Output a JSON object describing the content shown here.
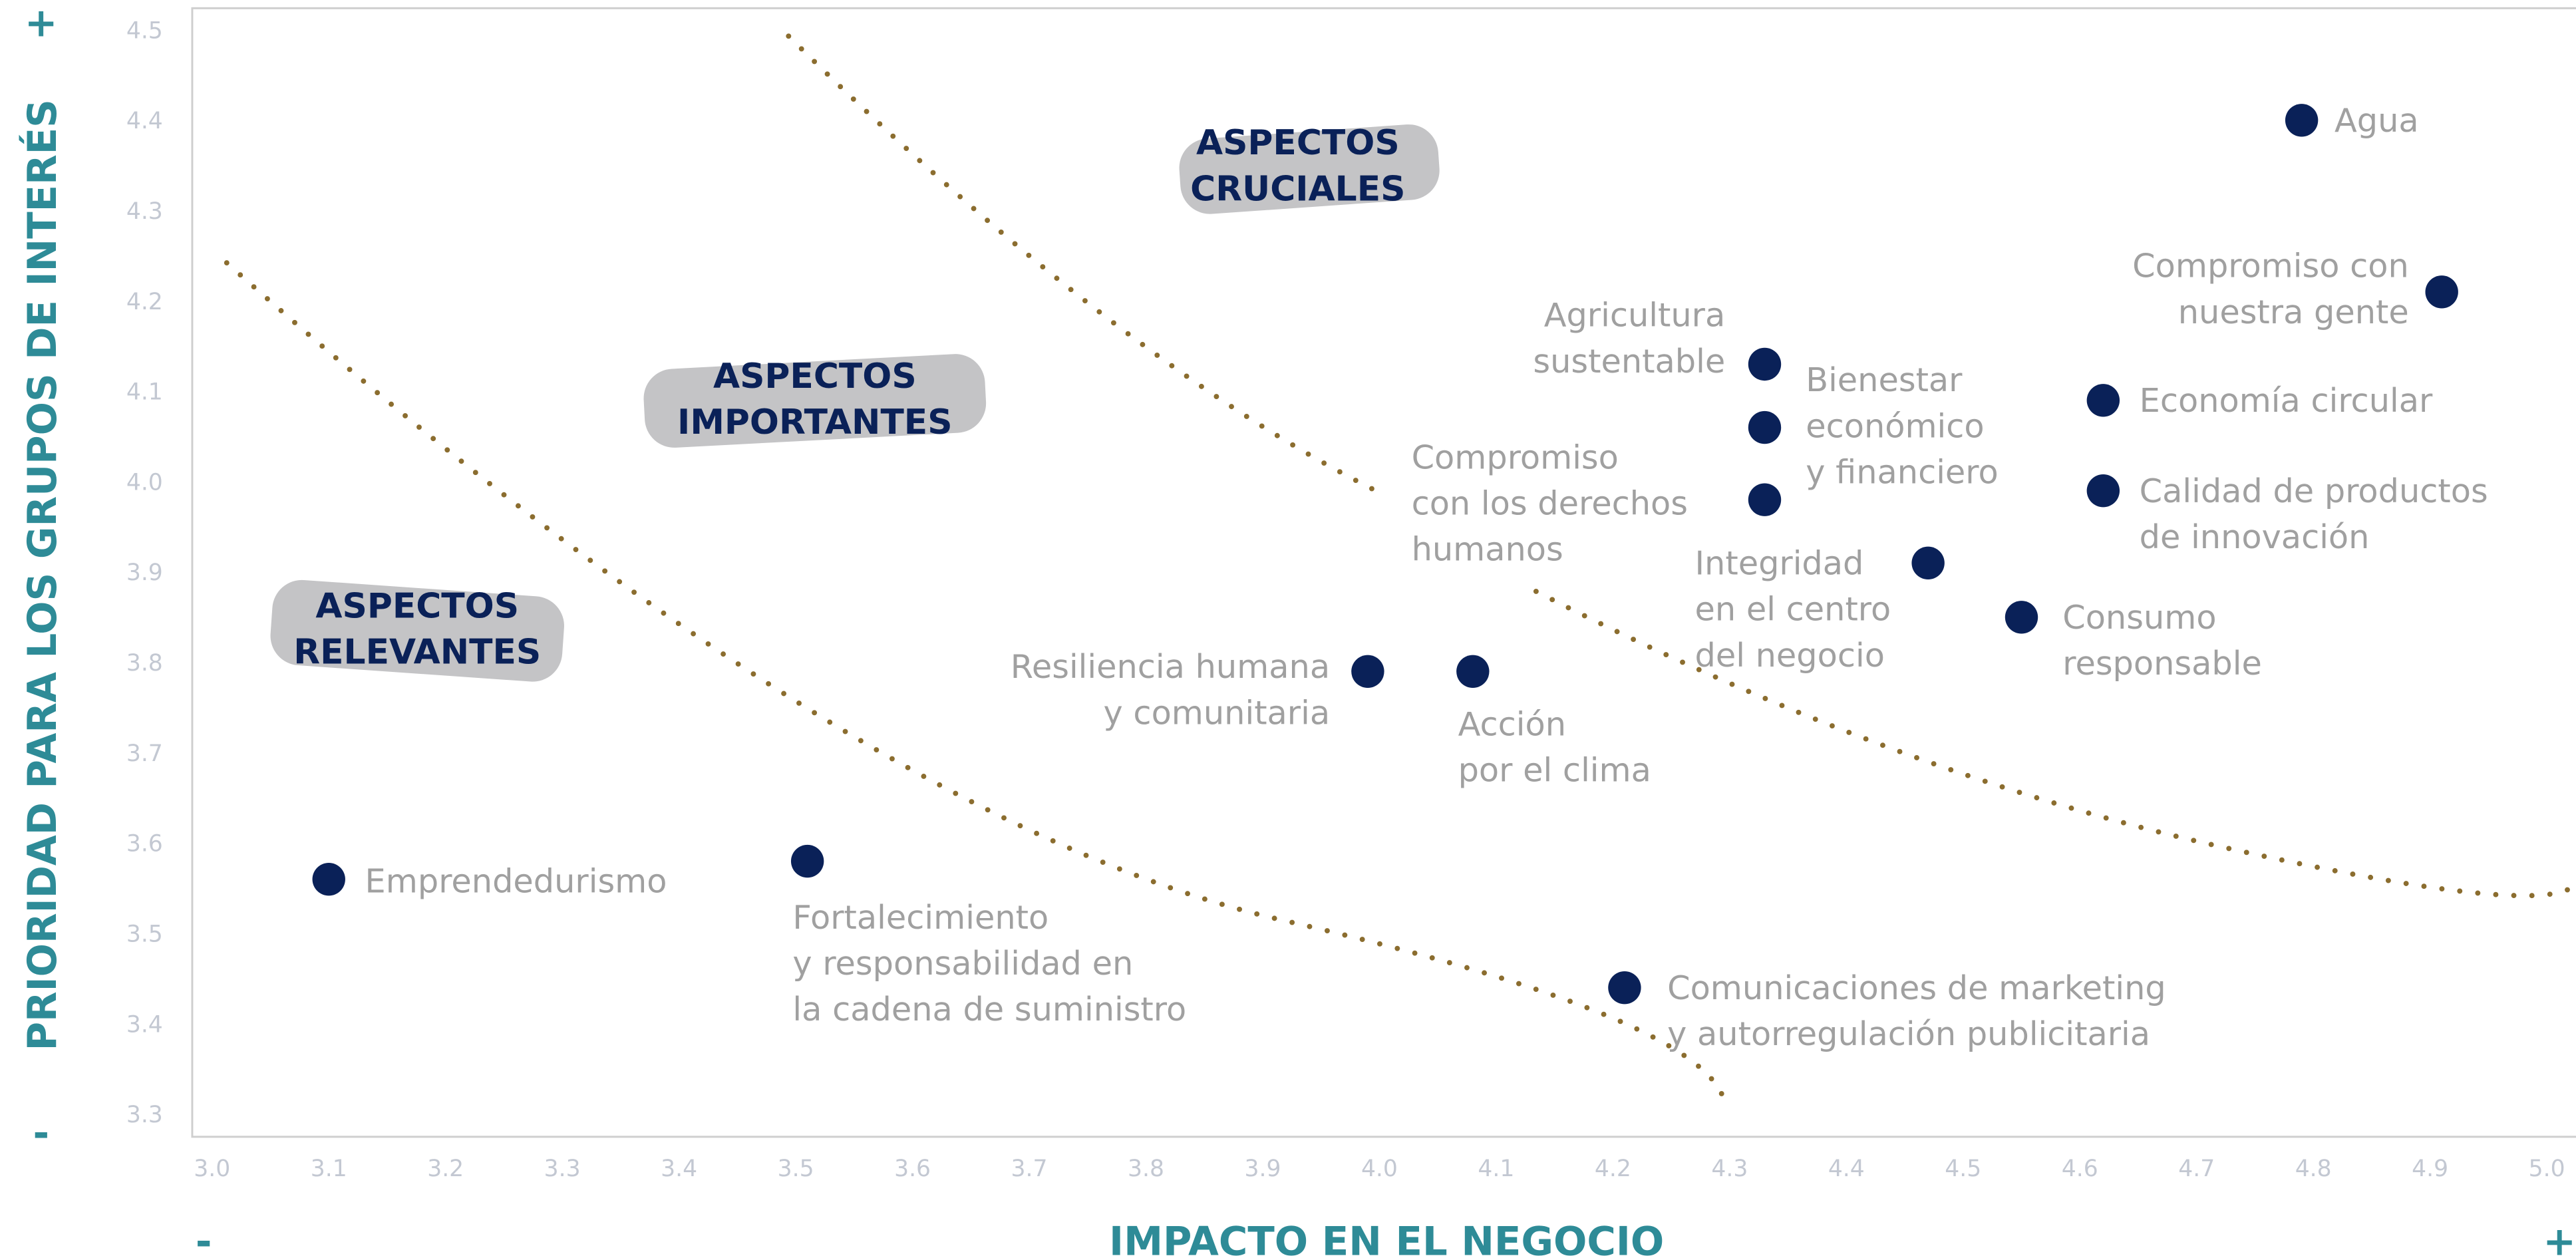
{
  "chart_data": {
    "type": "scatter",
    "x_label": "IMPACTO EN EL NEGOCIO",
    "y_label": "PRIORIDAD PARA LOS GRUPOS DE INTERÉS",
    "x_end_labels": [
      "-",
      "+"
    ],
    "y_end_labels": [
      "-",
      "+"
    ],
    "annotations": [
      [
        "ASPECTOS",
        "CRUCIALES"
      ],
      [
        "ASPECTOS",
        "IMPORTANTES"
      ],
      [
        "ASPECTOS",
        "RELEVANTES"
      ]
    ],
    "labels": [
      [
        "Agua"
      ],
      [
        "Compromiso con",
        "nuestra gente"
      ],
      [
        "Economía circular"
      ],
      [
        "Calidad de productos",
        "de innovación"
      ],
      [
        "Consumo",
        "responsable"
      ],
      [
        "Integridad",
        "en el centro",
        "del negocio"
      ],
      [
        "Agricultura",
        "sustentable"
      ],
      [
        "Bienestar",
        "económico",
        "y financiero"
      ],
      [
        "Compromiso",
        "con los derechos",
        "humanos"
      ],
      [
        "Acción",
        "por el clima"
      ],
      [
        "Resiliencia humana",
        "y comunitaria"
      ],
      [
        "Comunicaciones de marketing",
        "y autorregulación publicitaria"
      ],
      [
        "Fortalecimiento",
        "y  responsabilidad en",
        "la cadena de suministro"
      ],
      [
        "Emprendedurismo"
      ]
    ],
    "x": [
      4.79,
      4.91,
      4.62,
      4.62,
      4.55,
      4.47,
      4.33,
      4.33,
      4.33,
      4.08,
      3.99,
      4.21,
      3.51,
      3.1
    ],
    "values": [
      4.4,
      4.21,
      4.09,
      3.99,
      3.85,
      3.91,
      4.13,
      4.06,
      3.98,
      3.79,
      3.79,
      3.44,
      3.58,
      3.56
    ],
    "color": "#0a2158",
    "xlim": [
      2.983,
      5.025
    ],
    "ylim": [
      3.275,
      4.524
    ],
    "xticks": [
      {
        "value": 3,
        "label": "3.0"
      },
      3.1,
      3.2,
      3.3,
      3.4,
      3.5,
      3.6,
      3.7,
      3.8,
      3.9,
      {
        "value": 4,
        "label": "4.0"
      },
      4.1,
      4.2,
      4.3,
      4.4,
      4.5,
      4.6,
      4.7,
      4.8,
      4.9,
      {
        "value": 5,
        "label": "5.0"
      }
    ],
    "yticks": [
      3.3,
      3.4,
      3.5,
      3.6,
      3.7,
      3.8,
      3.9,
      {
        "value": 4,
        "label": "4.0"
      },
      4.1,
      4.2,
      4.3,
      4.4,
      4.5
    ]
  }
}
